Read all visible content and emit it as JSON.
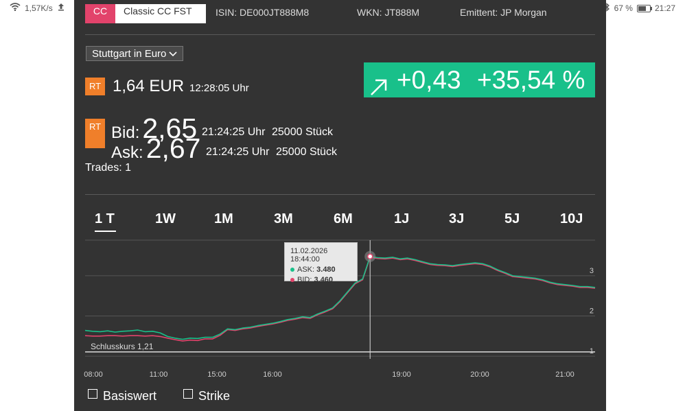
{
  "statusbar": {
    "speed": "1,57K/s",
    "battery_pct": "67 %",
    "battery_level": 0.67,
    "time": "21:27"
  },
  "header": {
    "tag_red": "CC",
    "tag_white": "Classic CC FST",
    "isin": "ISIN: DE000JT888M8",
    "wkn": "WKN: JT888M",
    "emittent": "Emittent: JP Morgan"
  },
  "exchange": {
    "selected": "Stuttgart in Euro"
  },
  "quote": {
    "rt_badge": "RT",
    "price": "1,64 EUR",
    "time": "12:28:05 Uhr",
    "change_abs": "+0,43",
    "change_pct": "+35,54 %",
    "change_color": "#19c08a"
  },
  "bidask": {
    "bid_label": "Bid:",
    "bid_value": "2,65",
    "bid_time": "21:24:25 Uhr",
    "bid_size": "25000 Stück",
    "ask_label": "Ask:",
    "ask_value": "2,67",
    "ask_time": "21:24:25 Uhr",
    "ask_size": "25000 Stück",
    "trades": "Trades: 1"
  },
  "tabs": [
    {
      "label": "1 T",
      "active": true
    },
    {
      "label": "1W",
      "active": false
    },
    {
      "label": "1M",
      "active": false
    },
    {
      "label": "3M",
      "active": false
    },
    {
      "label": "6M",
      "active": false
    },
    {
      "label": "1J",
      "active": false
    },
    {
      "label": "3J",
      "active": false
    },
    {
      "label": "5J",
      "active": false
    },
    {
      "label": "10J",
      "active": false
    }
  ],
  "chart_data": {
    "type": "line",
    "ylim": [
      0.9,
      3.8
    ],
    "yticks": [
      "1",
      "2",
      "3"
    ],
    "xticks": [
      "08:00",
      "11:00",
      "15:00",
      "16:00",
      "19:00",
      "20:00",
      "21:00"
    ],
    "reference": {
      "label": "Schlusskurs 1,21",
      "value": 1.21
    },
    "series": [
      {
        "name": "ASK",
        "color": "#19c08a",
        "values": [
          1.64,
          1.62,
          1.61,
          1.63,
          1.6,
          1.62,
          1.63,
          1.65,
          1.61,
          1.62,
          1.58,
          1.49,
          1.45,
          1.42,
          1.45,
          1.44,
          1.47,
          1.47,
          1.55,
          1.68,
          1.66,
          1.7,
          1.72,
          1.76,
          1.79,
          1.82,
          1.86,
          1.91,
          1.94,
          1.98,
          1.96,
          2.05,
          2.12,
          2.2,
          2.38,
          2.6,
          2.82,
          2.92,
          3.48,
          3.45,
          3.44,
          3.46,
          3.42,
          3.44,
          3.4,
          3.35,
          3.3,
          3.28,
          3.27,
          3.25,
          3.28,
          3.3,
          3.32,
          3.3,
          3.24,
          3.15,
          3.08,
          3.0,
          2.98,
          2.96,
          2.94,
          2.9,
          2.84,
          2.8,
          2.78,
          2.76,
          2.73,
          2.73,
          2.71
        ]
      },
      {
        "name": "BID",
        "color": "#e2436b",
        "values": [
          1.51,
          1.5,
          1.5,
          1.51,
          1.51,
          1.5,
          1.51,
          1.51,
          1.5,
          1.51,
          1.49,
          1.45,
          1.41,
          1.38,
          1.4,
          1.39,
          1.43,
          1.43,
          1.52,
          1.66,
          1.64,
          1.68,
          1.7,
          1.74,
          1.77,
          1.8,
          1.84,
          1.89,
          1.92,
          1.96,
          1.94,
          2.03,
          2.1,
          2.18,
          2.36,
          2.58,
          2.8,
          2.9,
          3.46,
          3.43,
          3.42,
          3.44,
          3.4,
          3.42,
          3.38,
          3.33,
          3.28,
          3.26,
          3.25,
          3.23,
          3.26,
          3.28,
          3.3,
          3.28,
          3.22,
          3.13,
          3.06,
          2.98,
          2.96,
          2.94,
          2.92,
          2.88,
          2.82,
          2.78,
          2.76,
          2.74,
          2.71,
          2.71,
          2.69
        ]
      }
    ],
    "tooltip": {
      "datetime": "11.02.2026 18:44:00",
      "ask_label": "ASK:",
      "ask_value": "3.480",
      "bid_label": "BID:",
      "bid_value": "3.460"
    }
  },
  "filters": {
    "basiswert": "Basiswert",
    "strike": "Strike"
  }
}
